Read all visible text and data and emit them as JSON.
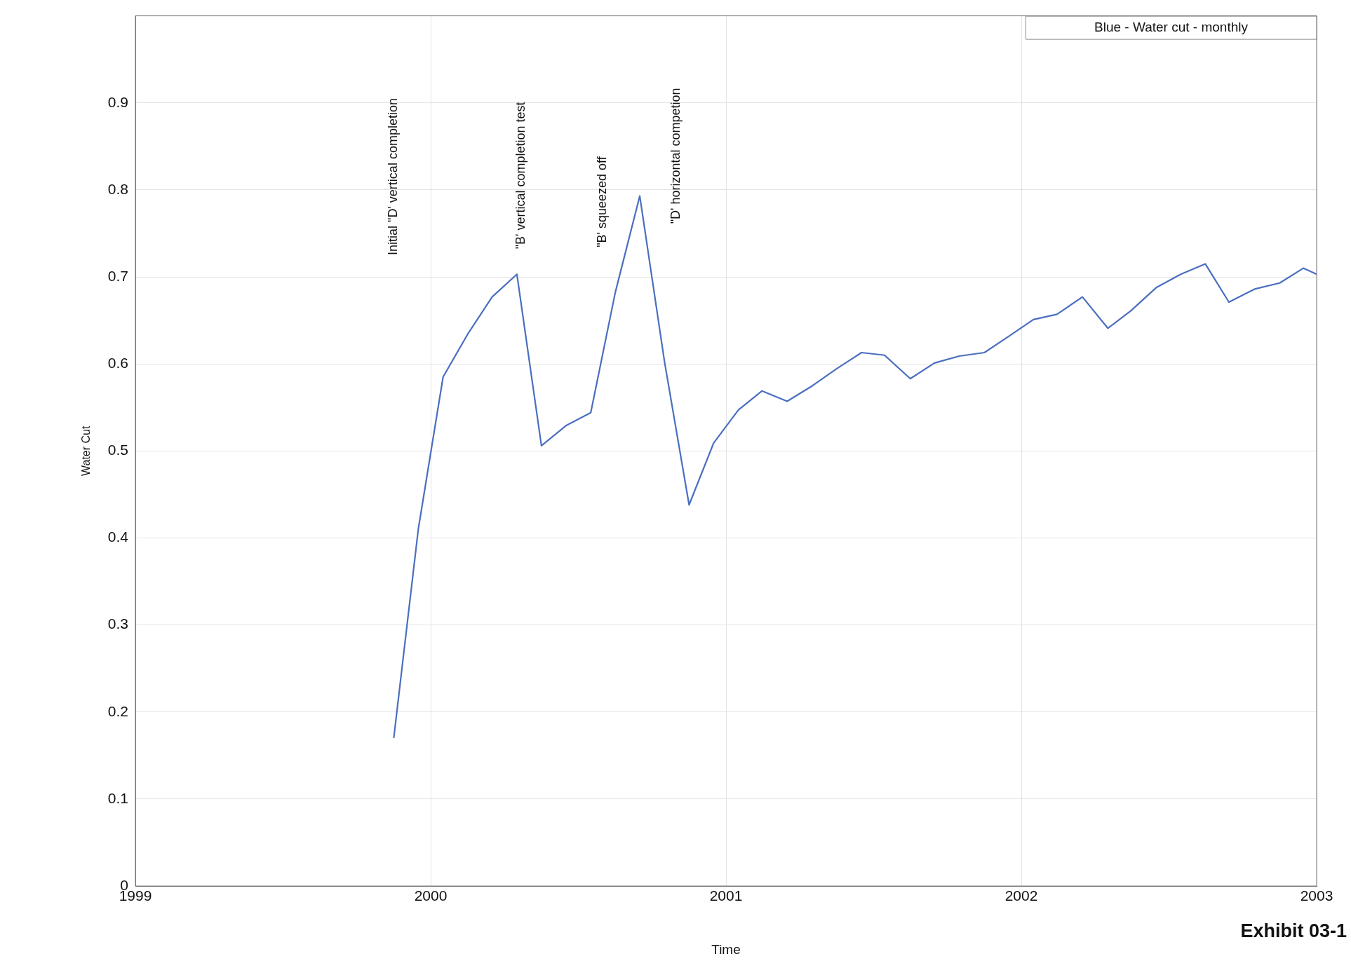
{
  "chart_data": {
    "type": "line",
    "xlabel": "Time",
    "ylabel": "Water Cut",
    "xlim": [
      1999,
      2003
    ],
    "xticks": [
      1999,
      2000,
      2001,
      2002,
      2003
    ],
    "ylim": [
      0,
      1
    ],
    "yticks": [
      0,
      0.1,
      0.2,
      0.3,
      0.4,
      0.5,
      0.6,
      0.7,
      0.8,
      0.9
    ],
    "grid": true,
    "legend": "top right",
    "marker": "none",
    "line_style": "solid",
    "series": [
      {
        "name": "Blue - Water cut - monthly",
        "color": "#4a6fbf",
        "x": [
          1999.875,
          1999.958,
          2000.042,
          2000.125,
          2000.208,
          2000.292,
          2000.375,
          2000.458,
          2000.542,
          2000.625,
          2000.708,
          2000.792,
          2000.875,
          2000.958,
          2001.042,
          2001.122,
          2001.207,
          2001.293,
          2001.377,
          2001.459,
          2001.537,
          2001.624,
          2001.706,
          2001.79,
          2001.875,
          2001.959,
          2002.041,
          2002.121,
          2002.207,
          2002.293,
          2002.371,
          2002.458,
          2002.54,
          2002.623,
          2002.703,
          2002.79,
          2002.875,
          2002.955,
          2003
        ],
        "values": [
          0.17,
          0.41,
          0.585,
          0.634,
          0.677,
          0.703,
          0.506,
          0.529,
          0.544,
          0.682,
          0.793,
          0.602,
          0.438,
          0.509,
          0.547,
          0.569,
          0.557,
          0.575,
          0.595,
          0.613,
          0.61,
          0.583,
          0.601,
          0.609,
          0.613,
          0.632,
          0.651,
          0.657,
          0.677,
          0.641,
          0.661,
          0.688,
          0.703,
          0.715,
          0.671,
          0.686,
          0.693,
          0.71,
          0.703
        ]
      }
    ],
    "annotations": [
      "Initial \"D' vertical completion",
      "\"B' vertical completion test",
      "\"B' squeezed off",
      "\"D' horizontal competion",
      "Exhibit 03-1"
    ]
  }
}
